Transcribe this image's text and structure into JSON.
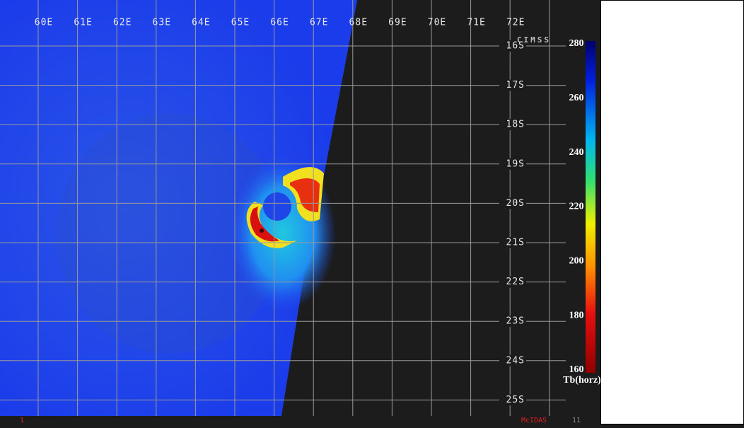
{
  "map": {
    "longitude_labels": [
      "60E",
      "61E",
      "62E",
      "63E",
      "64E",
      "65E",
      "66E",
      "67E",
      "68E",
      "69E",
      "70E",
      "71E",
      "72E"
    ],
    "latitude_labels": [
      "16S",
      "17S",
      "18S",
      "19S",
      "20S",
      "21S",
      "22S",
      "23S",
      "24S",
      "25S"
    ],
    "logo": "CIMSS",
    "colorbar": {
      "label": "Tb(horz)",
      "range": [
        160,
        280
      ],
      "ticks": [
        280,
        260,
        240,
        220,
        200,
        180,
        160
      ]
    },
    "footer": {
      "left": "1",
      "center": "McIDAS",
      "right": "11"
    }
  }
}
